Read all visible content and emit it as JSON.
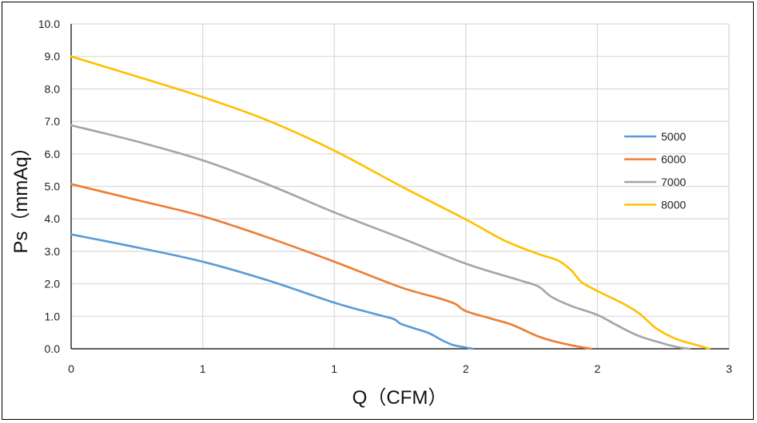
{
  "chart_data": {
    "type": "line",
    "title": "",
    "xlabel": "Q（CFM）",
    "ylabel": "Ps（mmAq）",
    "xlim": [
      0,
      5
    ],
    "ylim": [
      0,
      10
    ],
    "x_tick_labels": [
      "0",
      "1",
      "1",
      "2",
      "2",
      "3"
    ],
    "y_tick_labels": [
      "0.0",
      "1.0",
      "2.0",
      "3.0",
      "4.0",
      "5.0",
      "6.0",
      "7.0",
      "8.0",
      "9.0",
      "10.0"
    ],
    "grid": true,
    "legend_position": "right",
    "series": [
      {
        "name": "5000",
        "color": "#5B9BD5",
        "points": [
          [
            0,
            3.52
          ],
          [
            0.5,
            3.12
          ],
          [
            1.0,
            2.68
          ],
          [
            1.5,
            2.1
          ],
          [
            2.0,
            1.42
          ],
          [
            2.3,
            1.08
          ],
          [
            2.45,
            0.92
          ],
          [
            2.5,
            0.78
          ],
          [
            2.6,
            0.64
          ],
          [
            2.72,
            0.48
          ],
          [
            2.82,
            0.26
          ],
          [
            2.9,
            0.12
          ],
          [
            3.0,
            0.04
          ],
          [
            3.05,
            0.0
          ]
        ]
      },
      {
        "name": "6000",
        "color": "#ED7D31",
        "points": [
          [
            0,
            5.07
          ],
          [
            0.5,
            4.58
          ],
          [
            1.0,
            4.08
          ],
          [
            1.5,
            3.42
          ],
          [
            2.0,
            2.68
          ],
          [
            2.5,
            1.9
          ],
          [
            2.8,
            1.55
          ],
          [
            2.92,
            1.38
          ],
          [
            3.0,
            1.16
          ],
          [
            3.2,
            0.92
          ],
          [
            3.35,
            0.74
          ],
          [
            3.55,
            0.38
          ],
          [
            3.7,
            0.2
          ],
          [
            3.85,
            0.07
          ],
          [
            3.95,
            0.0
          ]
        ]
      },
      {
        "name": "7000",
        "color": "#A5A5A5",
        "points": [
          [
            0,
            6.88
          ],
          [
            0.5,
            6.38
          ],
          [
            1.0,
            5.8
          ],
          [
            1.5,
            5.05
          ],
          [
            2.0,
            4.2
          ],
          [
            2.5,
            3.42
          ],
          [
            3.0,
            2.62
          ],
          [
            3.4,
            2.12
          ],
          [
            3.55,
            1.92
          ],
          [
            3.65,
            1.6
          ],
          [
            3.8,
            1.32
          ],
          [
            4.0,
            1.04
          ],
          [
            4.15,
            0.72
          ],
          [
            4.3,
            0.42
          ],
          [
            4.45,
            0.22
          ],
          [
            4.6,
            0.06
          ],
          [
            4.7,
            0.0
          ]
        ]
      },
      {
        "name": "8000",
        "color": "#FFC000",
        "points": [
          [
            0,
            9.0
          ],
          [
            0.5,
            8.38
          ],
          [
            1.0,
            7.75
          ],
          [
            1.5,
            7.02
          ],
          [
            2.0,
            6.1
          ],
          [
            2.5,
            5.02
          ],
          [
            3.0,
            3.98
          ],
          [
            3.3,
            3.32
          ],
          [
            3.55,
            2.92
          ],
          [
            3.7,
            2.72
          ],
          [
            3.8,
            2.42
          ],
          [
            3.88,
            2.05
          ],
          [
            4.0,
            1.78
          ],
          [
            4.2,
            1.38
          ],
          [
            4.32,
            1.08
          ],
          [
            4.45,
            0.62
          ],
          [
            4.6,
            0.3
          ],
          [
            4.75,
            0.12
          ],
          [
            4.85,
            0.0
          ]
        ]
      }
    ]
  }
}
